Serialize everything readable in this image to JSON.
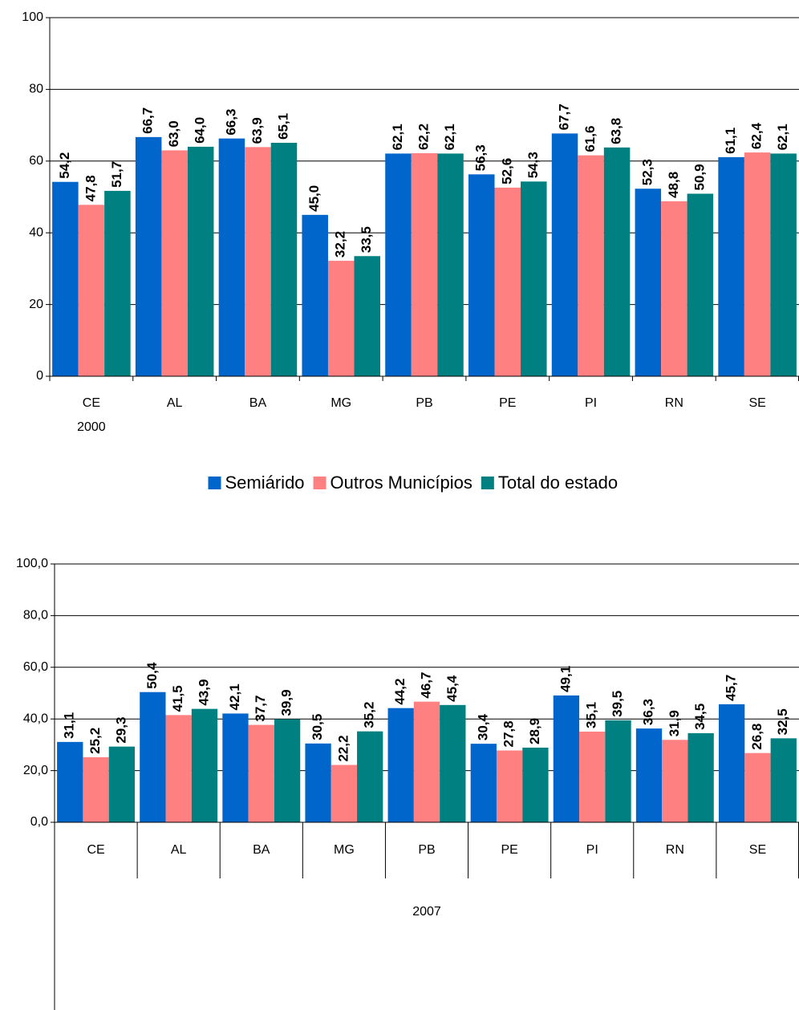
{
  "chart_data": [
    {
      "type": "bar",
      "x_group_label": "2000",
      "categories": [
        "CE",
        "AL",
        "BA",
        "MG",
        "PB",
        "PE",
        "PI",
        "RN",
        "SE"
      ],
      "series": [
        {
          "name": "Semiárido",
          "color": "#0066cc",
          "values": [
            54.2,
            66.7,
            66.3,
            45.0,
            62.1,
            56.3,
            67.7,
            52.3,
            61.1
          ],
          "value_labels": [
            "54,2",
            "66,7",
            "66,3",
            "45,0",
            "62,1",
            "56,3",
            "67,7",
            "52,3",
            "61,1"
          ]
        },
        {
          "name": "Outros Municípios",
          "color": "#ff8080",
          "values": [
            47.8,
            63.0,
            63.9,
            32.2,
            62.2,
            52.6,
            61.6,
            48.8,
            62.4
          ],
          "value_labels": [
            "47,8",
            "63,0",
            "63,9",
            "32,2",
            "62,2",
            "52,6",
            "61,6",
            "48,8",
            "62,4"
          ]
        },
        {
          "name": "Total do estado",
          "color": "#008080",
          "values": [
            51.7,
            64.0,
            65.1,
            33.5,
            62.1,
            54.3,
            63.8,
            50.9,
            62.1
          ],
          "value_labels": [
            "51,7",
            "64,0",
            "65,1",
            "33,5",
            "62,1",
            "54,3",
            "63,8",
            "50,9",
            "62,1"
          ]
        }
      ],
      "ylim": [
        0,
        100
      ],
      "yticks": [
        0,
        20,
        40,
        60,
        80,
        100
      ],
      "grid": true,
      "legend": "bottom"
    },
    {
      "type": "bar",
      "x_group_label": "2007",
      "categories": [
        "CE",
        "AL",
        "BA",
        "MG",
        "PB",
        "PE",
        "PI",
        "RN",
        "SE"
      ],
      "series": [
        {
          "color": "#0066cc",
          "values": [
            31.1,
            50.4,
            42.1,
            30.5,
            44.2,
            30.4,
            49.1,
            36.3,
            45.7
          ],
          "value_labels": [
            "31,1",
            "50,4",
            "42,1",
            "30,5",
            "44,2",
            "30,4",
            "49,1",
            "36,3",
            "45,7"
          ]
        },
        {
          "color": "#ff8080",
          "values": [
            25.2,
            41.5,
            37.7,
            22.2,
            46.7,
            27.8,
            35.1,
            31.9,
            26.8
          ],
          "value_labels": [
            "25,2",
            "41,5",
            "37,7",
            "22,2",
            "46,7",
            "27,8",
            "35,1",
            "31,9",
            "26,8"
          ]
        },
        {
          "color": "#008080",
          "values": [
            29.3,
            43.9,
            39.9,
            35.2,
            45.4,
            28.9,
            39.5,
            34.5,
            32.5
          ],
          "value_labels": [
            "29,3",
            "43,9",
            "39,9",
            "35,2",
            "45,4",
            "28,9",
            "39,5",
            "34,5",
            "32,5"
          ]
        }
      ],
      "ylim": [
        0,
        100
      ],
      "yticks": [
        {
          "value": 0,
          "label": "0,0"
        },
        {
          "value": 20,
          "label": "20,0"
        },
        {
          "value": 40,
          "label": "40,0"
        },
        {
          "value": 60,
          "label": "60,0"
        },
        {
          "value": 80,
          "label": "80,0"
        },
        {
          "value": 100,
          "label": "100,0"
        }
      ],
      "grid": true
    }
  ]
}
